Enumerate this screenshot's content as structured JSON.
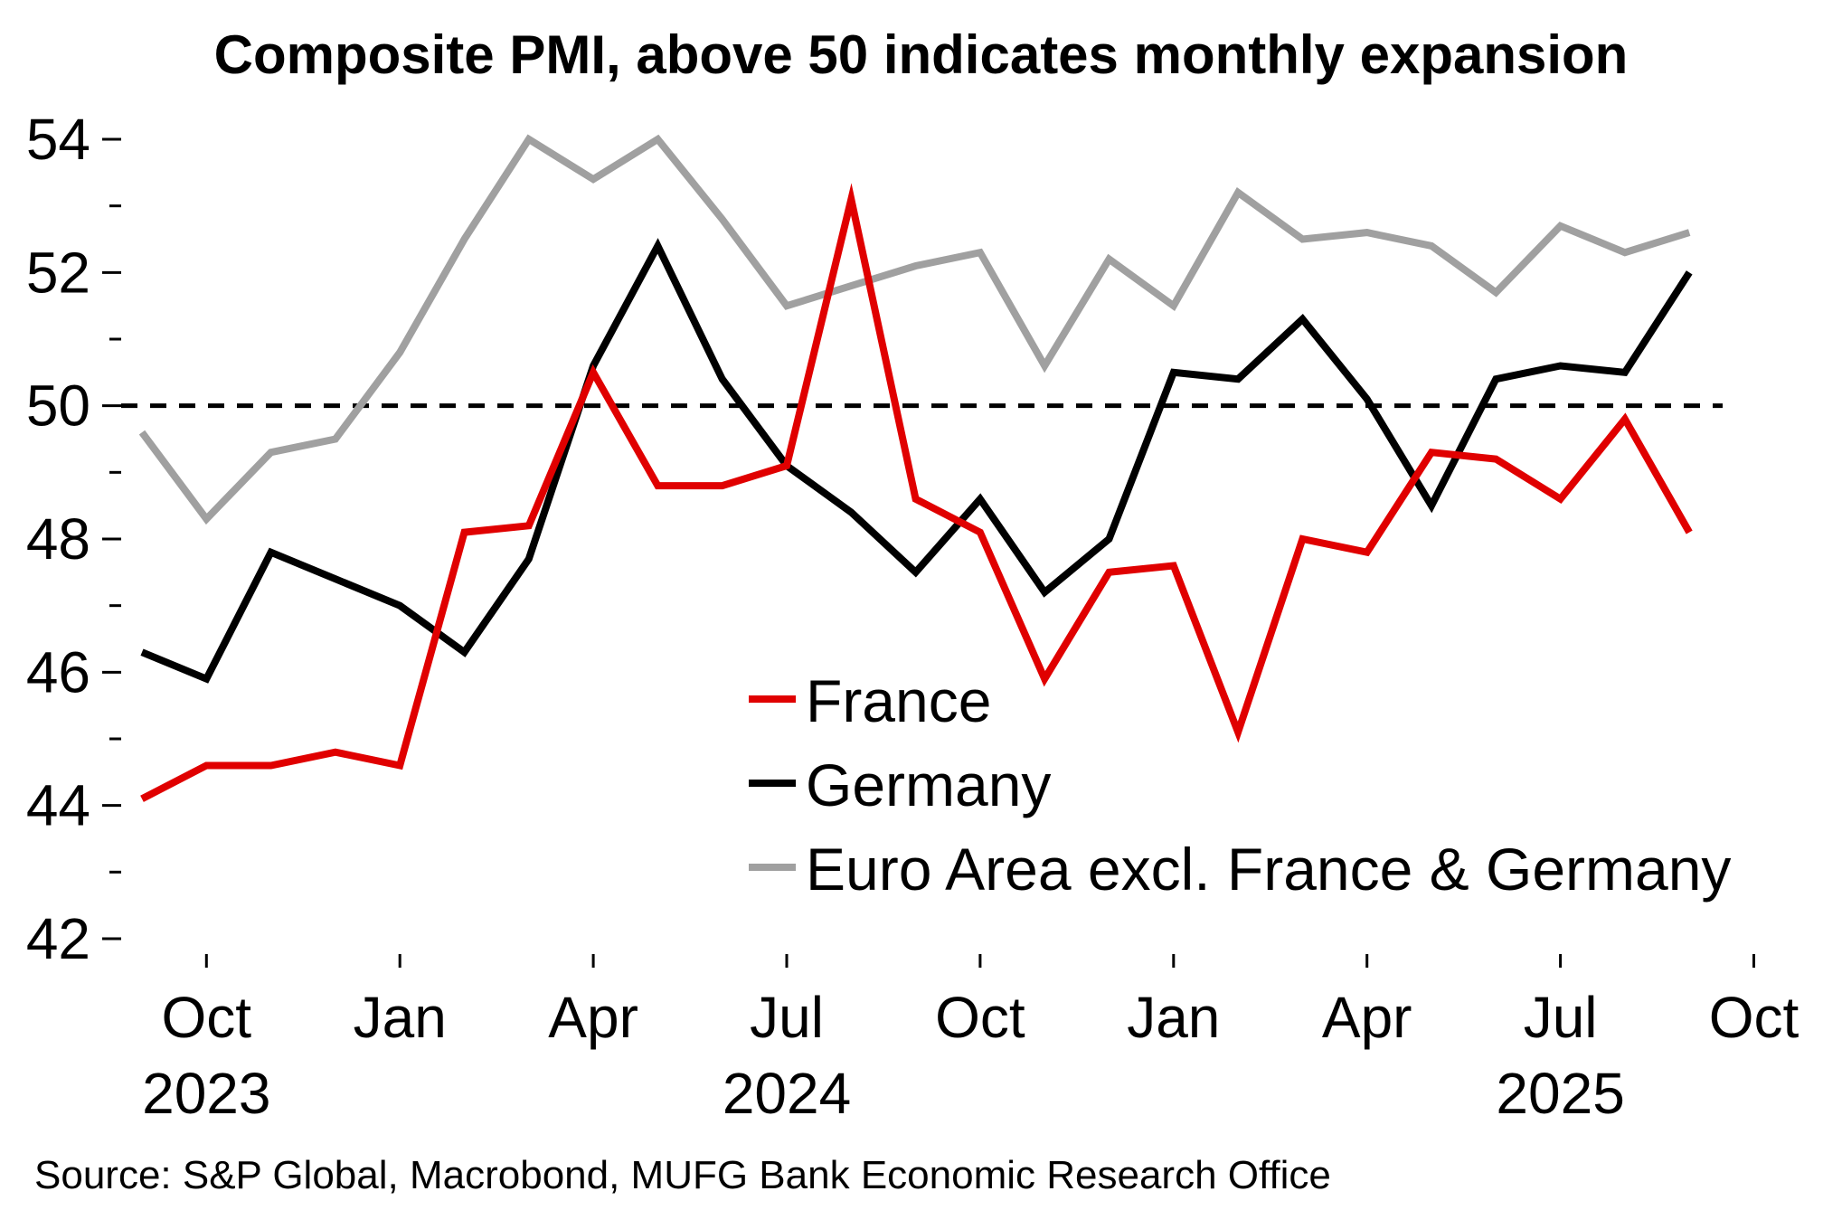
{
  "chart_data": {
    "type": "line",
    "title": "Composite PMI, above 50 indicates monthly expansion",
    "source": "Source: S&P Global, Macrobond, MUFG Bank Economic Research Office",
    "xlabel": "",
    "ylabel": "",
    "ylim": [
      42,
      54
    ],
    "yticks": [
      "42",
      "44",
      "46",
      "48",
      "50",
      "52",
      "54"
    ],
    "x": [
      "2023-09",
      "2023-10",
      "2023-11",
      "2023-12",
      "2024-01",
      "2024-02",
      "2024-03",
      "2024-04",
      "2024-05",
      "2024-06",
      "2024-07",
      "2024-08",
      "2024-09",
      "2024-10",
      "2024-11",
      "2024-12",
      "2025-01",
      "2025-02",
      "2025-03",
      "2025-04",
      "2025-05",
      "2025-06",
      "2025-07",
      "2025-08",
      "2025-09"
    ],
    "xticks": [
      {
        "month": "2023-10",
        "label": "Oct",
        "year": "2023"
      },
      {
        "month": "2024-01",
        "label": "Jan",
        "year": ""
      },
      {
        "month": "2024-04",
        "label": "Apr",
        "year": ""
      },
      {
        "month": "2024-07",
        "label": "Jul",
        "year": "2024"
      },
      {
        "month": "2024-10",
        "label": "Oct",
        "year": ""
      },
      {
        "month": "2025-01",
        "label": "Jan",
        "year": ""
      },
      {
        "month": "2025-04",
        "label": "Apr",
        "year": ""
      },
      {
        "month": "2025-07",
        "label": "Jul",
        "year": "2025"
      },
      {
        "month": "2025-10",
        "label": "Oct",
        "year": ""
      }
    ],
    "reference_line": {
      "y": 50,
      "style": "dashed",
      "color": "#000000"
    },
    "series": [
      {
        "name": "France",
        "color": "#e00000",
        "values": [
          44.1,
          44.6,
          44.6,
          44.8,
          44.6,
          48.1,
          48.2,
          50.5,
          48.8,
          48.8,
          49.1,
          53.1,
          48.6,
          48.1,
          45.9,
          47.5,
          47.6,
          45.1,
          48.0,
          47.8,
          49.3,
          49.2,
          48.6,
          49.8,
          48.1
        ]
      },
      {
        "name": "Germany",
        "color": "#000000",
        "values": [
          46.3,
          45.9,
          47.8,
          47.4,
          47.0,
          46.3,
          47.7,
          50.6,
          52.4,
          50.4,
          49.1,
          48.4,
          47.5,
          48.6,
          47.2,
          48.0,
          50.5,
          50.4,
          51.3,
          50.1,
          48.5,
          50.4,
          50.6,
          50.5,
          52.0
        ]
      },
      {
        "name": "Euro Area excl. France & Germany",
        "color": "#a0a0a0",
        "values": [
          49.6,
          48.3,
          49.3,
          49.5,
          50.8,
          52.5,
          54.0,
          53.4,
          54.0,
          52.8,
          51.5,
          51.8,
          52.1,
          52.3,
          50.6,
          52.2,
          51.5,
          53.2,
          52.5,
          52.6,
          52.4,
          51.7,
          52.7,
          52.3,
          52.6
        ]
      }
    ],
    "legend": {
      "position": "bottom-right",
      "entries": [
        "France",
        "Germany",
        "Euro Area excl. France & Germany"
      ]
    },
    "grid": false
  }
}
